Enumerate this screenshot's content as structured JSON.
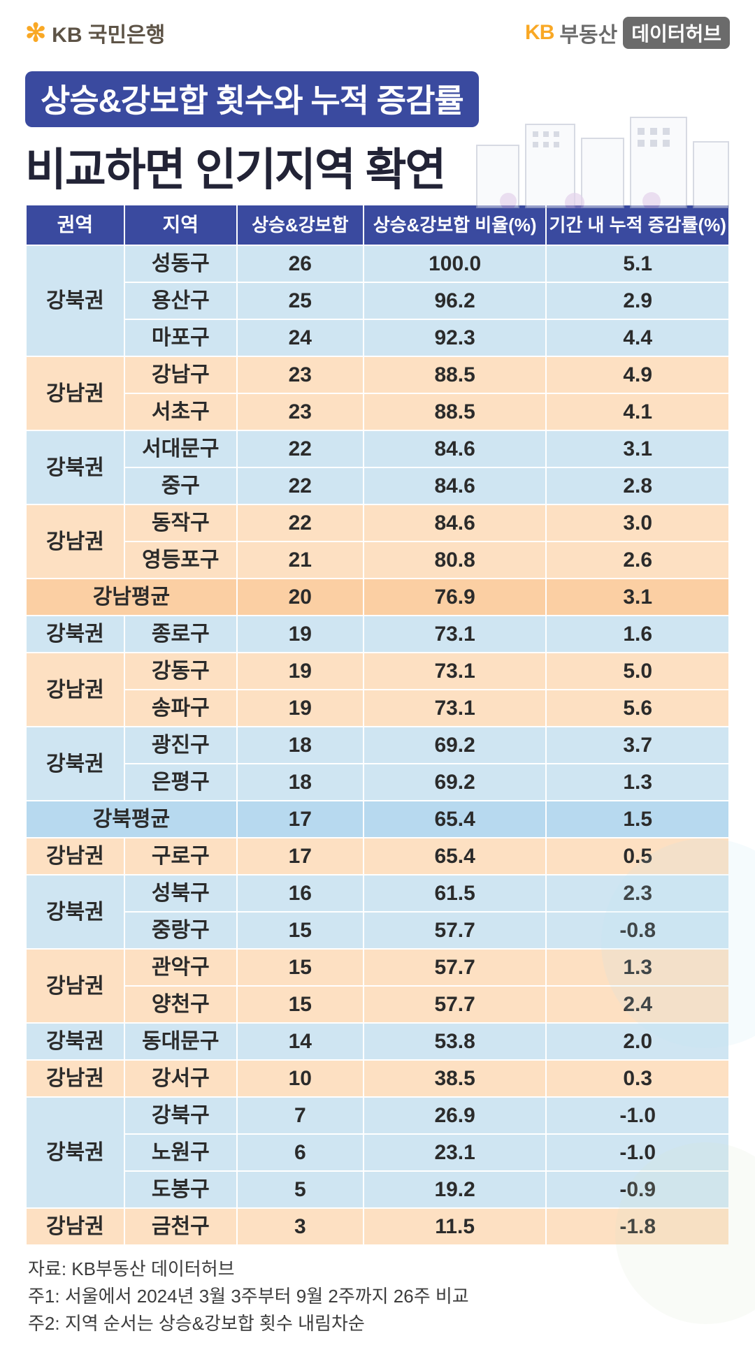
{
  "header": {
    "left_logo_prefix": "KB",
    "left_logo_text": "국민은행",
    "right_logo_kb": "KB",
    "right_logo_re": "부동산",
    "right_badge": "데이터허브"
  },
  "title": {
    "pill": "상승&강보합 횟수와 누적 증감률",
    "main": "비교하면 인기지역 확연"
  },
  "table": {
    "columns": [
      "권역",
      "지역",
      "상승&강보합",
      "상승&강보합 비율(%)",
      "기간 내 누적 증감률(%)"
    ],
    "col_widths_pct": [
      14,
      16,
      18,
      26,
      26
    ],
    "groups": [
      {
        "region": "강북권",
        "style": "blue",
        "rows": [
          {
            "district": "성동구",
            "count": "26",
            "ratio": "100.0",
            "cum": "5.1"
          },
          {
            "district": "용산구",
            "count": "25",
            "ratio": "96.2",
            "cum": "2.9"
          },
          {
            "district": "마포구",
            "count": "24",
            "ratio": "92.3",
            "cum": "4.4"
          }
        ]
      },
      {
        "region": "강남권",
        "style": "peach",
        "rows": [
          {
            "district": "강남구",
            "count": "23",
            "ratio": "88.5",
            "cum": "4.9"
          },
          {
            "district": "서초구",
            "count": "23",
            "ratio": "88.5",
            "cum": "4.1"
          }
        ]
      },
      {
        "region": "강북권",
        "style": "blue",
        "rows": [
          {
            "district": "서대문구",
            "count": "22",
            "ratio": "84.6",
            "cum": "3.1"
          },
          {
            "district": "중구",
            "count": "22",
            "ratio": "84.6",
            "cum": "2.8"
          }
        ]
      },
      {
        "region": "강남권",
        "style": "peach",
        "rows": [
          {
            "district": "동작구",
            "count": "22",
            "ratio": "84.6",
            "cum": "3.0"
          },
          {
            "district": "영등포구",
            "count": "21",
            "ratio": "80.8",
            "cum": "2.6"
          }
        ]
      },
      {
        "region_span": "강남평균",
        "style": "peach-dark",
        "count": "20",
        "ratio": "76.9",
        "cum": "3.1"
      },
      {
        "region": "강북권",
        "style": "blue",
        "rows": [
          {
            "district": "종로구",
            "count": "19",
            "ratio": "73.1",
            "cum": "1.6"
          }
        ]
      },
      {
        "region": "강남권",
        "style": "peach",
        "rows": [
          {
            "district": "강동구",
            "count": "19",
            "ratio": "73.1",
            "cum": "5.0"
          },
          {
            "district": "송파구",
            "count": "19",
            "ratio": "73.1",
            "cum": "5.6"
          }
        ]
      },
      {
        "region": "강북권",
        "style": "blue",
        "rows": [
          {
            "district": "광진구",
            "count": "18",
            "ratio": "69.2",
            "cum": "3.7"
          },
          {
            "district": "은평구",
            "count": "18",
            "ratio": "69.2",
            "cum": "1.3"
          }
        ]
      },
      {
        "region_span": "강북평균",
        "style": "blue-dark",
        "count": "17",
        "ratio": "65.4",
        "cum": "1.5"
      },
      {
        "region": "강남권",
        "style": "peach",
        "rows": [
          {
            "district": "구로구",
            "count": "17",
            "ratio": "65.4",
            "cum": "0.5"
          }
        ]
      },
      {
        "region": "강북권",
        "style": "blue",
        "rows": [
          {
            "district": "성북구",
            "count": "16",
            "ratio": "61.5",
            "cum": "2.3"
          },
          {
            "district": "중랑구",
            "count": "15",
            "ratio": "57.7",
            "cum": "-0.8"
          }
        ]
      },
      {
        "region": "강남권",
        "style": "peach",
        "rows": [
          {
            "district": "관악구",
            "count": "15",
            "ratio": "57.7",
            "cum": "1.3"
          },
          {
            "district": "양천구",
            "count": "15",
            "ratio": "57.7",
            "cum": "2.4"
          }
        ]
      },
      {
        "region": "강북권",
        "style": "blue",
        "rows": [
          {
            "district": "동대문구",
            "count": "14",
            "ratio": "53.8",
            "cum": "2.0"
          }
        ]
      },
      {
        "region": "강남권",
        "style": "peach",
        "rows": [
          {
            "district": "강서구",
            "count": "10",
            "ratio": "38.5",
            "cum": "0.3"
          }
        ]
      },
      {
        "region": "강북권",
        "style": "blue",
        "rows": [
          {
            "district": "강북구",
            "count": "7",
            "ratio": "26.9",
            "cum": "-1.0"
          },
          {
            "district": "노원구",
            "count": "6",
            "ratio": "23.1",
            "cum": "-1.0"
          },
          {
            "district": "도봉구",
            "count": "5",
            "ratio": "19.2",
            "cum": "-0.9"
          }
        ]
      },
      {
        "region": "강남권",
        "style": "peach",
        "rows": [
          {
            "district": "금천구",
            "count": "3",
            "ratio": "11.5",
            "cum": "-1.8"
          }
        ]
      }
    ]
  },
  "colors": {
    "header_bg": "#3a4a9f",
    "blue_bg": "#cfe5f2",
    "peach_bg": "#fde0c2",
    "blue_dark_bg": "#b7d9ef",
    "peach_dark_bg": "#fbcfa3",
    "title_text": "#222336",
    "accent_yellow": "#f9a825"
  },
  "footnotes": [
    "자료: KB부동산 데이터허브",
    "주1: 서울에서 2024년 3월 3주부터 9월 2주까지 26주 비교",
    "주2: 지역 순서는 상승&강보합 횟수 내림차순"
  ]
}
